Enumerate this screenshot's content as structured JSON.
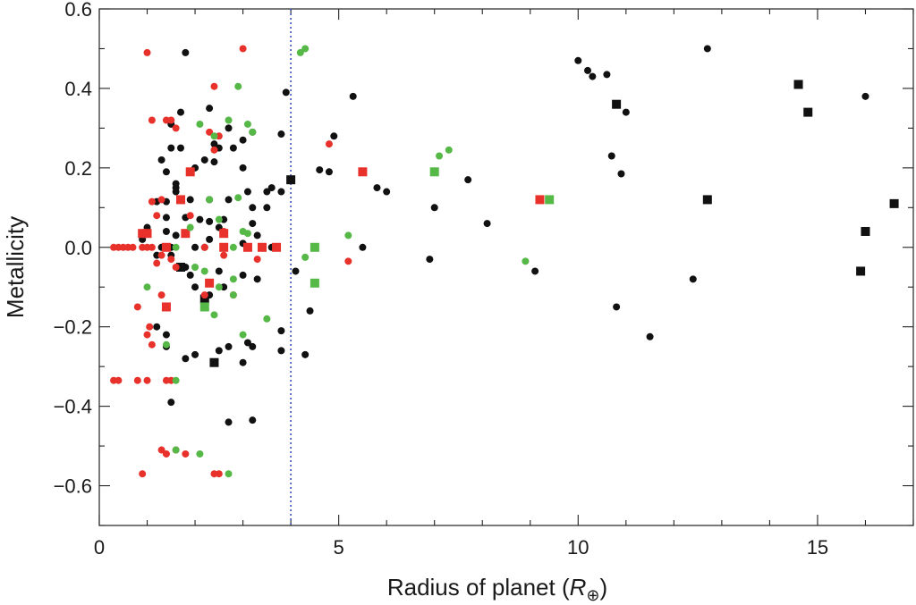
{
  "chart_data": {
    "type": "scatter",
    "title": "",
    "xlabel": "Radius of planet (",
    "xlabel_symbol": "R",
    "xlabel_sub": "⊕",
    "xlabel_close": ")",
    "ylabel": "Metallicity",
    "xlim": [
      0,
      17
    ],
    "ylim": [
      -0.7,
      0.6
    ],
    "x_ticks": [
      0,
      5,
      10,
      15
    ],
    "x_tick_labels": [
      "0",
      "5",
      "10",
      "15"
    ],
    "y_ticks": [
      -0.6,
      -0.4,
      -0.2,
      0.0,
      0.2,
      0.4,
      0.6
    ],
    "y_tick_labels": [
      "−0.6",
      "−0.4",
      "−0.2",
      "0.0",
      "0.2",
      "0.4",
      "0.6"
    ],
    "vertical_line": {
      "x": 4.0,
      "style": "dotted",
      "color": "#3a4fbf"
    },
    "grid": false,
    "legend": "none",
    "colors": {
      "black": "#111111",
      "red": "#e8312a",
      "green": "#55b847"
    },
    "series": [
      {
        "color_key": "black",
        "marker": "circle",
        "points": [
          [
            1.8,
            0.49
          ],
          [
            2.3,
            0.35
          ],
          [
            1.7,
            0.34
          ],
          [
            1.5,
            0.31
          ],
          [
            2.7,
            0.3
          ],
          [
            3.2,
            0.29
          ],
          [
            3.8,
            0.285
          ],
          [
            1.5,
            0.25
          ],
          [
            1.7,
            0.25
          ],
          [
            2.4,
            0.26
          ],
          [
            2.5,
            0.25
          ],
          [
            2.8,
            0.25
          ],
          [
            3.0,
            0.27
          ],
          [
            1.3,
            0.22
          ],
          [
            1.6,
            0.16
          ],
          [
            1.6,
            0.15
          ],
          [
            2.2,
            0.22
          ],
          [
            2.4,
            0.215
          ],
          [
            1.4,
            0.19
          ],
          [
            2.0,
            0.2
          ],
          [
            3.0,
            0.2
          ],
          [
            3.1,
            0.14
          ],
          [
            1.6,
            0.14
          ],
          [
            3.6,
            0.15
          ],
          [
            3.5,
            0.14
          ],
          [
            3.8,
            0.14
          ],
          [
            2.7,
            0.12
          ],
          [
            2.3,
            0.12
          ],
          [
            1.2,
            0.115
          ],
          [
            1.4,
            0.115
          ],
          [
            1.9,
            0.12
          ],
          [
            3.5,
            0.1
          ],
          [
            3.2,
            0.1
          ],
          [
            1.4,
            0.075
          ],
          [
            1.8,
            0.075
          ],
          [
            2.1,
            0.07
          ],
          [
            2.3,
            0.065
          ],
          [
            2.6,
            0.07
          ],
          [
            3.2,
            0.06
          ],
          [
            2.5,
            0.05
          ],
          [
            1.0,
            0.05
          ],
          [
            1.4,
            0.04
          ],
          [
            0.9,
            0.02
          ],
          [
            1.6,
            0.03
          ],
          [
            2.3,
            0.02
          ],
          [
            3.3,
            0.03
          ],
          [
            3.0,
            0.01
          ],
          [
            1.3,
            0.0
          ],
          [
            1.5,
            0.0
          ],
          [
            2.0,
            0.0
          ],
          [
            2.2,
            0.0
          ],
          [
            2.6,
            0.0
          ],
          [
            3.6,
            0.0
          ],
          [
            1.2,
            -0.02
          ],
          [
            1.5,
            -0.02
          ],
          [
            1.8,
            -0.05
          ],
          [
            2.5,
            -0.06
          ],
          [
            2.0,
            -0.1
          ],
          [
            1.9,
            -0.07
          ],
          [
            2.3,
            -0.12
          ],
          [
            2.6,
            -0.1
          ],
          [
            3.0,
            -0.07
          ],
          [
            3.3,
            -0.08
          ],
          [
            2.2,
            -0.15
          ],
          [
            1.2,
            -0.2
          ],
          [
            1.4,
            -0.22
          ],
          [
            1.4,
            -0.25
          ],
          [
            2.7,
            -0.25
          ],
          [
            3.1,
            -0.24
          ],
          [
            3.2,
            -0.25
          ],
          [
            1.8,
            -0.28
          ],
          [
            2.0,
            -0.27
          ],
          [
            2.5,
            -0.26
          ],
          [
            3.0,
            -0.29
          ],
          [
            3.8,
            -0.21
          ],
          [
            3.8,
            -0.26
          ],
          [
            1.5,
            -0.39
          ],
          [
            2.7,
            -0.44
          ],
          [
            3.2,
            -0.435
          ],
          [
            3.9,
            0.39
          ],
          [
            4.6,
            0.195
          ],
          [
            4.8,
            0.19
          ],
          [
            4.9,
            0.28
          ],
          [
            5.3,
            0.38
          ],
          [
            5.8,
            0.15
          ],
          [
            6.0,
            0.14
          ],
          [
            4.1,
            -0.06
          ],
          [
            4.3,
            -0.27
          ],
          [
            4.4,
            -0.16
          ],
          [
            5.5,
            0.0
          ],
          [
            7.0,
            0.1
          ],
          [
            7.7,
            0.17
          ],
          [
            8.1,
            0.06
          ],
          [
            6.9,
            -0.03
          ],
          [
            9.1,
            -0.06
          ],
          [
            10.0,
            0.47
          ],
          [
            10.2,
            0.445
          ],
          [
            10.3,
            0.43
          ],
          [
            10.6,
            0.435
          ],
          [
            10.7,
            0.23
          ],
          [
            10.9,
            0.185
          ],
          [
            11.0,
            0.34
          ],
          [
            10.8,
            -0.15
          ],
          [
            11.5,
            -0.225
          ],
          [
            12.4,
            -0.08
          ],
          [
            12.7,
            0.5
          ],
          [
            16.0,
            0.38
          ]
        ]
      },
      {
        "color_key": "black",
        "marker": "square",
        "points": [
          [
            4.0,
            0.17
          ],
          [
            1.7,
            -0.05
          ],
          [
            2.2,
            -0.13
          ],
          [
            2.4,
            -0.29
          ],
          [
            10.8,
            0.36
          ],
          [
            12.7,
            0.12
          ],
          [
            14.6,
            0.41
          ],
          [
            14.8,
            0.34
          ],
          [
            15.9,
            -0.06
          ],
          [
            16.0,
            0.04
          ],
          [
            16.6,
            0.11
          ]
        ]
      },
      {
        "color_key": "red",
        "marker": "circle",
        "points": [
          [
            1.0,
            0.49
          ],
          [
            3.0,
            0.5
          ],
          [
            2.4,
            0.405
          ],
          [
            1.1,
            0.32
          ],
          [
            1.4,
            0.32
          ],
          [
            1.5,
            0.32
          ],
          [
            1.6,
            0.3
          ],
          [
            2.3,
            0.29
          ],
          [
            2.5,
            0.28
          ],
          [
            2.4,
            0.245
          ],
          [
            1.1,
            0.115
          ],
          [
            1.3,
            0.12
          ],
          [
            1.2,
            0.08
          ],
          [
            1.9,
            0.08
          ],
          [
            2.6,
            0.04
          ],
          [
            0.3,
            0.0
          ],
          [
            0.4,
            0.0
          ],
          [
            0.5,
            0.0
          ],
          [
            0.6,
            0.0
          ],
          [
            0.7,
            0.0
          ],
          [
            0.9,
            0.0
          ],
          [
            1.0,
            0.0
          ],
          [
            1.1,
            0.0
          ],
          [
            1.3,
            -0.02
          ],
          [
            1.5,
            -0.03
          ],
          [
            1.2,
            -0.04
          ],
          [
            1.6,
            -0.05
          ],
          [
            2.2,
            0.0
          ],
          [
            2.6,
            -0.02
          ],
          [
            3.3,
            -0.03
          ],
          [
            0.8,
            -0.15
          ],
          [
            1.0,
            -0.22
          ],
          [
            1.1,
            -0.245
          ],
          [
            1.05,
            -0.2
          ],
          [
            1.3,
            -0.12
          ],
          [
            2.2,
            -0.12
          ],
          [
            2.8,
            -0.12
          ],
          [
            0.3,
            -0.335
          ],
          [
            0.4,
            -0.335
          ],
          [
            0.8,
            -0.335
          ],
          [
            1.0,
            -0.335
          ],
          [
            1.4,
            -0.335
          ],
          [
            1.5,
            -0.335
          ],
          [
            1.3,
            -0.51
          ],
          [
            1.4,
            -0.52
          ],
          [
            1.6,
            -0.51
          ],
          [
            1.8,
            -0.52
          ],
          [
            0.9,
            -0.57
          ],
          [
            2.4,
            -0.57
          ],
          [
            2.5,
            -0.57
          ],
          [
            4.8,
            0.26
          ],
          [
            5.2,
            -0.035
          ]
        ]
      },
      {
        "color_key": "red",
        "marker": "square",
        "points": [
          [
            0.9,
            0.035
          ],
          [
            1.0,
            0.035
          ],
          [
            1.8,
            0.035
          ],
          [
            2.6,
            0.035
          ],
          [
            1.9,
            0.19
          ],
          [
            1.7,
            0.12
          ],
          [
            1.4,
            0.0
          ],
          [
            2.6,
            0.0
          ],
          [
            3.1,
            0.0
          ],
          [
            3.4,
            0.0
          ],
          [
            3.7,
            0.0
          ],
          [
            2.3,
            -0.09
          ],
          [
            1.4,
            -0.15
          ],
          [
            5.5,
            0.19
          ],
          [
            9.2,
            0.12
          ]
        ]
      },
      {
        "color_key": "green",
        "marker": "circle",
        "points": [
          [
            4.2,
            0.49
          ],
          [
            4.3,
            0.5
          ],
          [
            2.9,
            0.405
          ],
          [
            2.1,
            0.31
          ],
          [
            2.7,
            0.32
          ],
          [
            3.1,
            0.31
          ],
          [
            3.2,
            0.29
          ],
          [
            2.4,
            0.28
          ],
          [
            2.3,
            0.12
          ],
          [
            2.9,
            0.125
          ],
          [
            1.9,
            0.05
          ],
          [
            2.5,
            0.07
          ],
          [
            2.8,
            0.0
          ],
          [
            1.6,
            0.0
          ],
          [
            3.0,
            0.04
          ],
          [
            3.1,
            0.035
          ],
          [
            2.2,
            -0.06
          ],
          [
            2.0,
            -0.05
          ],
          [
            2.5,
            -0.1
          ],
          [
            2.8,
            -0.08
          ],
          [
            2.8,
            -0.12
          ],
          [
            1.0,
            -0.1
          ],
          [
            2.2,
            -0.15
          ],
          [
            2.4,
            -0.17
          ],
          [
            3.5,
            -0.18
          ],
          [
            3.0,
            -0.22
          ],
          [
            1.4,
            -0.245
          ],
          [
            1.6,
            -0.335
          ],
          [
            1.6,
            -0.51
          ],
          [
            2.1,
            -0.52
          ],
          [
            2.7,
            -0.57
          ],
          [
            4.3,
            -0.025
          ],
          [
            5.2,
            0.03
          ],
          [
            7.1,
            0.23
          ],
          [
            7.3,
            0.245
          ],
          [
            8.9,
            -0.035
          ]
        ]
      },
      {
        "color_key": "green",
        "marker": "square",
        "points": [
          [
            2.2,
            -0.15
          ],
          [
            4.5,
            0.0
          ],
          [
            4.5,
            -0.09
          ],
          [
            7.0,
            0.19
          ],
          [
            9.4,
            0.12
          ]
        ]
      }
    ]
  }
}
